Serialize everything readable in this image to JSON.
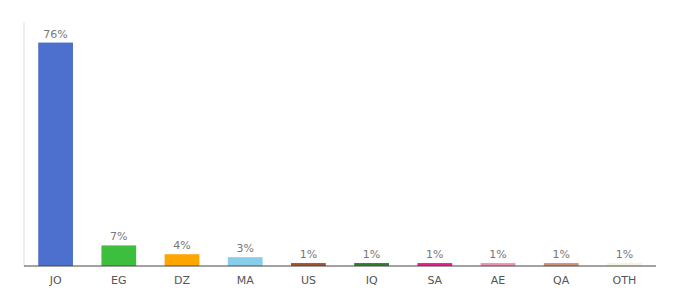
{
  "chart_data": {
    "type": "bar",
    "categories": [
      "JO",
      "EG",
      "DZ",
      "MA",
      "US",
      "IQ",
      "SA",
      "AE",
      "QA",
      "OTH"
    ],
    "values": [
      76,
      7,
      4,
      3,
      1,
      1,
      1,
      1,
      1,
      1
    ],
    "value_labels": [
      "76%",
      "7%",
      "4%",
      "3%",
      "1%",
      "1%",
      "1%",
      "1%",
      "1%",
      "1%"
    ],
    "colors": [
      "#4d6fce",
      "#3dbf3d",
      "#ffa500",
      "#87ceeb",
      "#a0522d",
      "#2e7d32",
      "#e91e8c",
      "#f48fb1",
      "#d2907a",
      "#f5f5dc"
    ],
    "ylim": [
      0,
      83
    ],
    "data_labels": true,
    "tick_labels": "x",
    "grid": false
  }
}
